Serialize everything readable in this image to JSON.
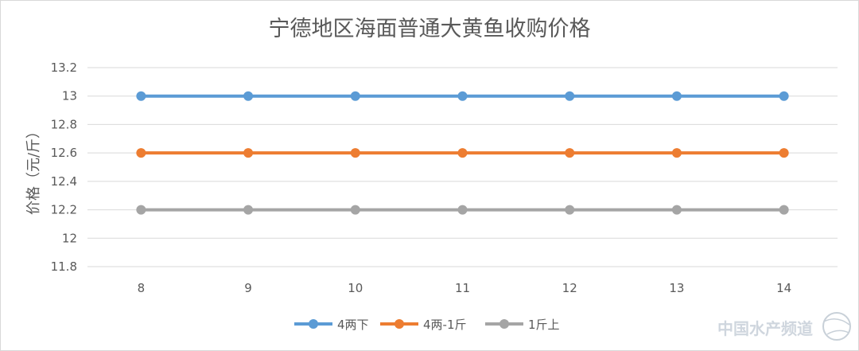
{
  "chart_data": {
    "type": "line",
    "title": "宁德地区海面普通大黄鱼收购价格",
    "xlabel": "",
    "ylabel": "价格（元/斤）",
    "x": [
      8,
      9,
      10,
      11,
      12,
      13,
      14
    ],
    "ylim": [
      11.8,
      13.2
    ],
    "yticks": [
      "11.8",
      "12",
      "12.2",
      "12.4",
      "12.6",
      "12.8",
      "13",
      "13.2"
    ],
    "grid": true,
    "legend_position": "bottom",
    "series": [
      {
        "name": "4两下",
        "color": "#5b9bd5",
        "values": [
          13,
          13,
          13,
          13,
          13,
          13,
          13
        ]
      },
      {
        "name": "4两-1斤",
        "color": "#ed7d31",
        "values": [
          12.6,
          12.6,
          12.6,
          12.6,
          12.6,
          12.6,
          12.6
        ]
      },
      {
        "name": "1斤上",
        "color": "#a5a5a5",
        "values": [
          12.2,
          12.2,
          12.2,
          12.2,
          12.2,
          12.2,
          12.2
        ]
      }
    ]
  },
  "watermark": {
    "text": "中国水产频道",
    "icon": "globe-icon"
  }
}
